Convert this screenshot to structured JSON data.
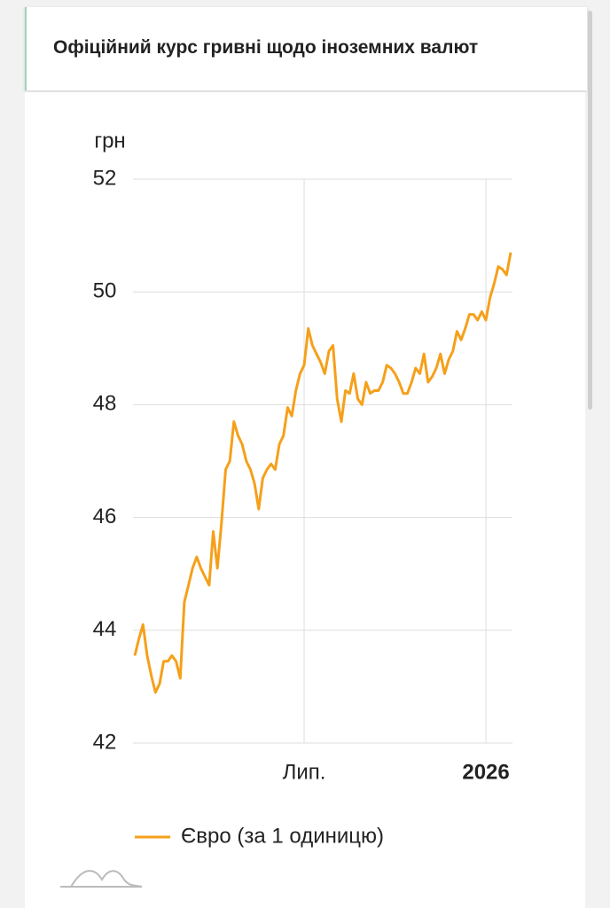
{
  "header": {
    "title": "Офіційний курс гривні щодо іноземних валют"
  },
  "chart_data": {
    "type": "line",
    "y_label": "грн",
    "categories": [
      null,
      null,
      null,
      null,
      null,
      null,
      null,
      null,
      null,
      null,
      null,
      null,
      null,
      null,
      null,
      null,
      null,
      null,
      null,
      null,
      null,
      null,
      null,
      null,
      null,
      null,
      null,
      null,
      null,
      null,
      null,
      null,
      null,
      null,
      null,
      null,
      null,
      null,
      null,
      null,
      null,
      "Лип.",
      null,
      null,
      null,
      null,
      null,
      null,
      null,
      null,
      null,
      null,
      null,
      null,
      null,
      null,
      null,
      null,
      null,
      null,
      null,
      null,
      null,
      null,
      null,
      null,
      null,
      null,
      null,
      null,
      null,
      null,
      null,
      null,
      null,
      null,
      null,
      null,
      null,
      null,
      null,
      null,
      null,
      null,
      null,
      "2026",
      null,
      null,
      null,
      null,
      null,
      null
    ],
    "series": [
      {
        "name": "Євро (за 1 одиницю)",
        "color": "#f5a01a",
        "values": [
          43.55,
          43.85,
          44.1,
          43.55,
          43.2,
          42.9,
          43.05,
          43.45,
          43.45,
          43.55,
          43.45,
          43.15,
          44.5,
          44.8,
          45.1,
          45.3,
          45.1,
          44.95,
          44.8,
          45.75,
          45.1,
          45.9,
          46.85,
          47.0,
          47.7,
          47.45,
          47.3,
          47.0,
          46.85,
          46.6,
          46.15,
          46.7,
          46.85,
          46.95,
          46.85,
          47.3,
          47.45,
          47.95,
          47.8,
          48.25,
          48.55,
          48.7,
          49.35,
          49.05,
          48.9,
          48.75,
          48.55,
          48.95,
          49.05,
          48.1,
          47.7,
          48.25,
          48.2,
          48.55,
          48.1,
          48.0,
          48.4,
          48.2,
          48.25,
          48.25,
          48.4,
          48.7,
          48.65,
          48.55,
          48.4,
          48.2,
          48.2,
          48.4,
          48.65,
          48.55,
          48.9,
          48.4,
          48.5,
          48.65,
          48.9,
          48.55,
          48.8,
          48.95,
          49.3,
          49.15,
          49.35,
          49.6,
          49.6,
          49.5,
          49.65,
          49.5,
          49.9,
          50.15,
          50.45,
          50.4,
          50.3,
          50.7
        ]
      }
    ],
    "ylim": [
      42,
      52
    ],
    "yticks": [
      42,
      44,
      46,
      48,
      50,
      52
    ],
    "grid": true
  }
}
